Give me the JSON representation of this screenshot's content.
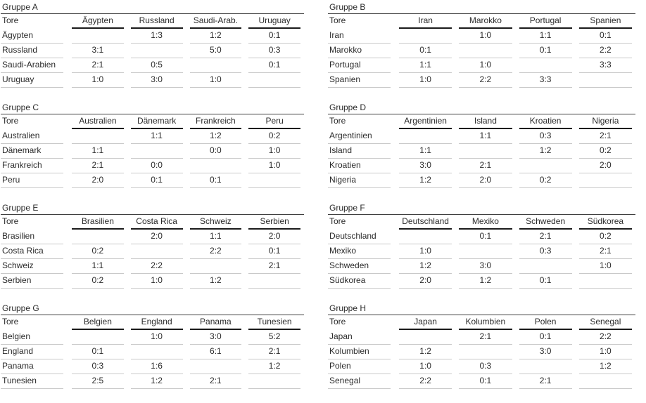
{
  "page": {
    "background": "#ffffff",
    "text_color": "#2b2b2b"
  },
  "colors": {
    "title_rule": "#3f3f3f",
    "header_rule": "#1a1a1a",
    "row_rule": "#c9c9c9"
  },
  "groups": [
    {
      "title": "Gruppe A",
      "corner": "Tore",
      "columns": [
        "Ägypten",
        "Russland",
        "Saudi-Arab.",
        "Uruguay"
      ],
      "rows": [
        {
          "label": "Ägypten",
          "cells": [
            "",
            "1:3",
            "1:2",
            "0:1"
          ]
        },
        {
          "label": "Russland",
          "cells": [
            "3:1",
            "",
            "5:0",
            "0:3"
          ]
        },
        {
          "label": "Saudi-Arabien",
          "cells": [
            "2:1",
            "0:5",
            "",
            "0:1"
          ]
        },
        {
          "label": "Uruguay",
          "cells": [
            "1:0",
            "3:0",
            "1:0",
            ""
          ]
        }
      ]
    },
    {
      "title": "Gruppe B",
      "corner": "Tore",
      "columns": [
        "Iran",
        "Marokko",
        "Portugal",
        "Spanien"
      ],
      "rows": [
        {
          "label": "Iran",
          "cells": [
            "",
            "1:0",
            "1:1",
            "0:1"
          ]
        },
        {
          "label": "Marokko",
          "cells": [
            "0:1",
            "",
            "0:1",
            "2:2"
          ]
        },
        {
          "label": "Portugal",
          "cells": [
            "1:1",
            "1:0",
            "",
            "3:3"
          ]
        },
        {
          "label": "Spanien",
          "cells": [
            "1:0",
            "2:2",
            "3:3",
            ""
          ]
        }
      ]
    },
    {
      "title": "Gruppe C",
      "corner": "Tore",
      "columns": [
        "Australien",
        "Dänemark",
        "Frankreich",
        "Peru"
      ],
      "rows": [
        {
          "label": "Australien",
          "cells": [
            "",
            "1:1",
            "1:2",
            "0:2"
          ]
        },
        {
          "label": "Dänemark",
          "cells": [
            "1:1",
            "",
            "0:0",
            "1:0"
          ]
        },
        {
          "label": "Frankreich",
          "cells": [
            "2:1",
            "0:0",
            "",
            "1:0"
          ]
        },
        {
          "label": "Peru",
          "cells": [
            "2:0",
            "0:1",
            "0:1",
            ""
          ]
        }
      ]
    },
    {
      "title": "Gruppe D",
      "corner": "Tore",
      "columns": [
        "Argentinien",
        "Island",
        "Kroatien",
        "Nigeria"
      ],
      "rows": [
        {
          "label": "Argentinien",
          "cells": [
            "",
            "1:1",
            "0:3",
            "2:1"
          ]
        },
        {
          "label": "Island",
          "cells": [
            "1:1",
            "",
            "1:2",
            "0:2"
          ]
        },
        {
          "label": "Kroatien",
          "cells": [
            "3:0",
            "2:1",
            "",
            "2:0"
          ]
        },
        {
          "label": "Nigeria",
          "cells": [
            "1:2",
            "2:0",
            "0:2",
            ""
          ]
        }
      ]
    },
    {
      "title": "Gruppe E",
      "corner": "Tore",
      "columns": [
        "Brasilien",
        "Costa Rica",
        "Schweiz",
        "Serbien"
      ],
      "rows": [
        {
          "label": "Brasilien",
          "cells": [
            "",
            "2:0",
            "1:1",
            "2:0"
          ]
        },
        {
          "label": "Costa Rica",
          "cells": [
            "0:2",
            "",
            "2:2",
            "0:1"
          ]
        },
        {
          "label": "Schweiz",
          "cells": [
            "1:1",
            "2:2",
            "",
            "2:1"
          ]
        },
        {
          "label": "Serbien",
          "cells": [
            "0:2",
            "1:0",
            "1:2",
            ""
          ]
        }
      ]
    },
    {
      "title": "Gruppe F",
      "corner": "Tore",
      "columns": [
        "Deutschland",
        "Mexiko",
        "Schweden",
        "Südkorea"
      ],
      "rows": [
        {
          "label": "Deutschland",
          "cells": [
            "",
            "0:1",
            "2:1",
            "0:2"
          ]
        },
        {
          "label": "Mexiko",
          "cells": [
            "1:0",
            "",
            "0:3",
            "2:1"
          ]
        },
        {
          "label": "Schweden",
          "cells": [
            "1:2",
            "3:0",
            "",
            "1:0"
          ]
        },
        {
          "label": "Südkorea",
          "cells": [
            "2:0",
            "1:2",
            "0:1",
            ""
          ]
        }
      ]
    },
    {
      "title": "Gruppe G",
      "corner": "Tore",
      "columns": [
        "Belgien",
        "England",
        "Panama",
        "Tunesien"
      ],
      "rows": [
        {
          "label": "Belgien",
          "cells": [
            "",
            "1:0",
            "3:0",
            "5:2"
          ]
        },
        {
          "label": "England",
          "cells": [
            "0:1",
            "",
            "6:1",
            "2:1"
          ]
        },
        {
          "label": "Panama",
          "cells": [
            "0:3",
            "1:6",
            "",
            "1:2"
          ]
        },
        {
          "label": "Tunesien",
          "cells": [
            "2:5",
            "1:2",
            "2:1",
            ""
          ]
        }
      ]
    },
    {
      "title": "Gruppe H",
      "corner": "Tore",
      "columns": [
        "Japan",
        "Kolumbien",
        "Polen",
        "Senegal"
      ],
      "rows": [
        {
          "label": "Japan",
          "cells": [
            "",
            "2:1",
            "0:1",
            "2:2"
          ]
        },
        {
          "label": "Kolumbien",
          "cells": [
            "1:2",
            "",
            "3:0",
            "1:0"
          ]
        },
        {
          "label": "Polen",
          "cells": [
            "1:0",
            "0:3",
            "",
            "1:2"
          ]
        },
        {
          "label": "Senegal",
          "cells": [
            "2:2",
            "0:1",
            "2:1",
            ""
          ]
        }
      ]
    }
  ]
}
